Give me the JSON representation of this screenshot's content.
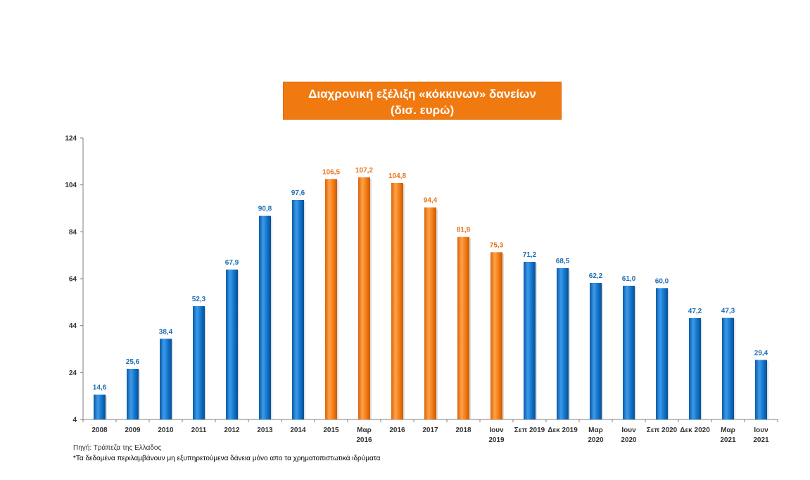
{
  "title": {
    "line1": "Διαχρονική εξέλιξη «κόκκινων» δανείων",
    "line2": "(δισ. ευρώ)"
  },
  "colors": {
    "blue": "#0f72c9",
    "orange": "#f07a10",
    "blue_label": "#1f6fb5",
    "orange_label": "#e8731a"
  },
  "chart_data": {
    "type": "bar",
    "title": "Διαχρονική εξέλιξη «κόκκινων» δανείων (δισ. ευρώ)",
    "xlabel": "",
    "ylabel": "",
    "ylim": [
      4,
      124
    ],
    "yticks": [
      4,
      24,
      44,
      64,
      84,
      104,
      124
    ],
    "grid": false,
    "categories": [
      [
        "2008"
      ],
      [
        "2009"
      ],
      [
        "2010"
      ],
      [
        "2011"
      ],
      [
        "2012"
      ],
      [
        "2013"
      ],
      [
        "2014"
      ],
      [
        "2015"
      ],
      [
        "Μαρ",
        "2016"
      ],
      [
        "2016"
      ],
      [
        "2017"
      ],
      [
        "2018"
      ],
      [
        "Ιουν",
        "2019"
      ],
      [
        "Σεπ 2019"
      ],
      [
        "Δεκ 2019"
      ],
      [
        "Μαρ",
        "2020"
      ],
      [
        "Ιουν",
        "2020"
      ],
      [
        "Σεπ 2020"
      ],
      [
        "Δεκ 2020"
      ],
      [
        "Μαρ",
        "2021"
      ],
      [
        "Ιουν",
        "2021"
      ]
    ],
    "values": [
      14.6,
      25.6,
      38.4,
      52.3,
      67.9,
      90.8,
      97.6,
      106.5,
      107.2,
      104.8,
      94.4,
      81.8,
      75.3,
      71.2,
      68.5,
      62.2,
      61.0,
      60.0,
      47.2,
      47.3,
      29.4
    ],
    "value_labels": [
      "14,6",
      "25,6",
      "38,4",
      "52,3",
      "67,9",
      "90,8",
      "97,6",
      "106,5",
      "107,2",
      "104,8",
      "94,4",
      "81,8",
      "75,3",
      "71,2",
      "68,5",
      "62,2",
      "61,0",
      "60,0",
      "47,2",
      "47,3",
      "29,4"
    ],
    "highlight": [
      false,
      false,
      false,
      false,
      false,
      false,
      false,
      true,
      true,
      true,
      true,
      true,
      true,
      false,
      false,
      false,
      false,
      false,
      false,
      false,
      false
    ]
  },
  "source": "Πηγή: Τράπεζα της Ελλαδος",
  "footnote": "*Τα δεδομένα περιλαμβάνουν μη εξυπηρετούμενα δάνεια μόνο απο τα χρηματοπιστωτικά ιδρύματα"
}
